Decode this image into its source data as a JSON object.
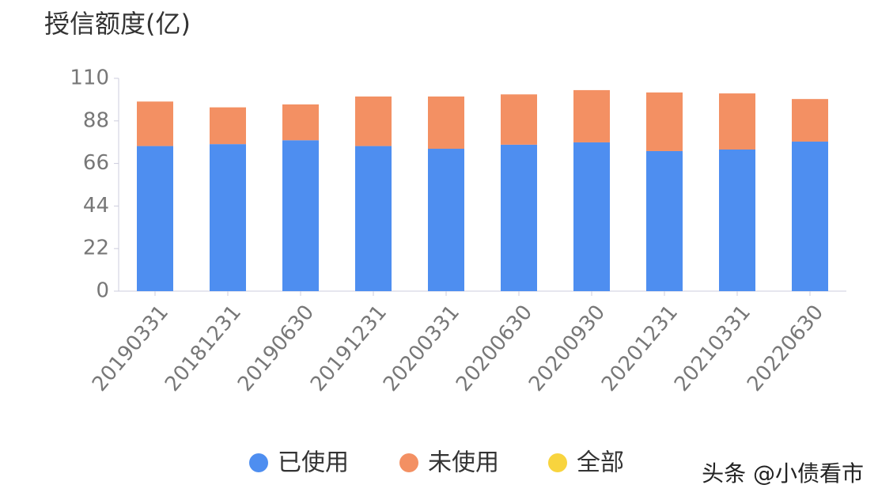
{
  "chart_data": {
    "type": "stacked_bar",
    "title": "授信额度(亿)",
    "categories": [
      "20190331",
      "20181231",
      "20190630",
      "20191231",
      "20200331",
      "20200630",
      "20200930",
      "20201231",
      "20210331",
      "20220630"
    ],
    "series": [
      {
        "name": "已使用",
        "color": "#4e8ef0",
        "values": [
          75,
          76,
          78,
          75,
          73.6,
          75.7,
          76.9,
          72.4,
          73.2,
          77.3
        ]
      },
      {
        "name": "未使用",
        "color": "#f39063",
        "values": [
          23,
          19,
          18.5,
          25.6,
          27,
          26,
          27,
          30.3,
          29,
          22
        ]
      },
      {
        "name": "全部",
        "color": "#f8d43e",
        "values": [
          null,
          null,
          null,
          null,
          null,
          null,
          null,
          null,
          null,
          null
        ]
      }
    ],
    "ylim": [
      0,
      110
    ],
    "yticks": [
      0,
      22,
      44,
      66,
      88,
      110
    ],
    "grid": false,
    "watermark": "头条 @小债看市"
  }
}
